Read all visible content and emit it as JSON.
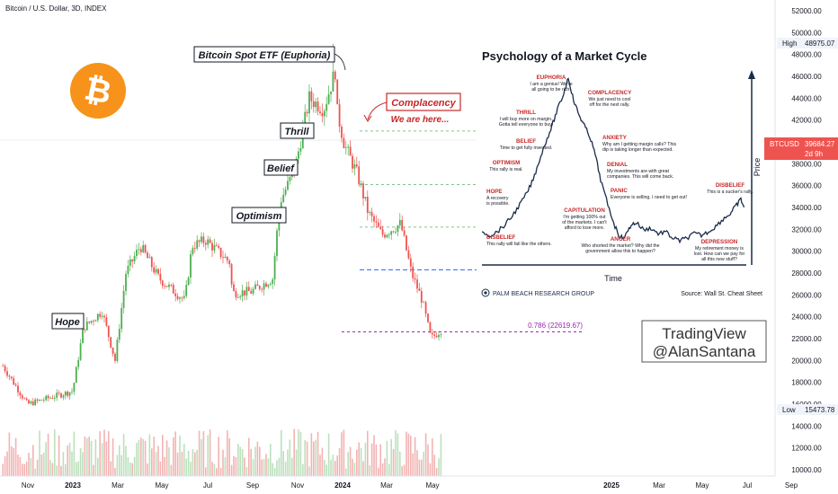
{
  "header": {
    "title": "Bitcoin / U.S. Dollar, 3D, INDEX"
  },
  "watermark": {
    "line1": "TradingView",
    "line2": "@AlanSantana"
  },
  "price_scale": {
    "labels": [
      "52000.00",
      "50000.00",
      "48000.00",
      "46000.00",
      "44000.00",
      "42000.00",
      "40000.00",
      "38000.00",
      "36000.00",
      "34000.00",
      "32000.00",
      "30000.00",
      "28000.00",
      "26000.00",
      "24000.00",
      "22000.00",
      "20000.00",
      "18000.00",
      "16000.00",
      "14000.00",
      "12000.00",
      "10000.00"
    ],
    "high_label": "High",
    "high_value": "48975.07",
    "low_label": "Low",
    "low_value": "15473.78",
    "symbol": "BTCUSD",
    "current_value": "39684.27",
    "countdown": "2d 9h"
  },
  "time_axis": [
    "Nov",
    "2023",
    "Mar",
    "May",
    "Jul",
    "Sep",
    "Nov",
    "2024",
    "Mar",
    "May",
    "2025",
    "Mar",
    "May",
    "Jul",
    "Sep"
  ],
  "annotations": {
    "etf": "Bitcoin Spot ETF (Euphoria)",
    "thrill": "Thrill",
    "belief": "Belief",
    "optimism": "Optimism",
    "hope": "Hope",
    "complacency": "Complacency",
    "here": "We are here...",
    "fib": "0.786 (22619.67)"
  },
  "inset": {
    "title": "Psychology of a Market Cycle",
    "x_label": "Time",
    "y_label": "Price",
    "publisher": "PALM BEACH RESEARCH GROUP",
    "source": "Source: Wall St. Cheat Sheet",
    "stages": [
      {
        "name": "EUPHORIA",
        "desc": [
          "I am a genius! We're",
          "all going to be rich!"
        ]
      },
      {
        "name": "COMPLACENCY",
        "desc": [
          "We just need to cool",
          "off for the next rally."
        ]
      },
      {
        "name": "THRILL",
        "desc": [
          "I will buy more on margin.",
          "Gotta tell everyone to buy!"
        ]
      },
      {
        "name": "ANXIETY",
        "desc": [
          "Why am I getting margin calls? This",
          "dip is taking longer than expected."
        ]
      },
      {
        "name": "BELIEF",
        "desc": [
          "Time to get fully invested."
        ]
      },
      {
        "name": "DENIAL",
        "desc": [
          "My investments are with great",
          "companies. This will come back."
        ]
      },
      {
        "name": "OPTIMISM",
        "desc": [
          "This rally is real."
        ]
      },
      {
        "name": "PANIC",
        "desc": [
          "Everyone is selling. I need to get out!"
        ]
      },
      {
        "name": "DISBELIEF",
        "desc": [
          "This is a sucker's rally."
        ]
      },
      {
        "name": "HOPE",
        "desc": [
          "A recovery",
          "is possible."
        ]
      },
      {
        "name": "CAPITULATION",
        "desc": [
          "I'm getting 100% out",
          "of the markets. I can't",
          "afford to lose more."
        ]
      },
      {
        "name": "DISBELIEF",
        "desc": [
          "This rally will fail like the others."
        ]
      },
      {
        "name": "ANGER",
        "desc": [
          "Who shorted the market? Why did the",
          "government allow this to happen?"
        ]
      },
      {
        "name": "DEPRESSION",
        "desc": [
          "My retirement money is",
          "lost. How can we pay for",
          "all this new stuff?"
        ]
      }
    ]
  },
  "colors": {
    "up": "#4caf50",
    "down": "#ef5350",
    "accent_red": "#c62828",
    "fib": "#9c27b0",
    "level_blue": "#2962ff",
    "level_green": "#4caf50",
    "bitcoin": "#f7931a"
  },
  "chart_data": {
    "type": "candlestick",
    "title": "Bitcoin / U.S. Dollar, 3D, INDEX",
    "ylim": [
      9000,
      53500
    ],
    "x_range": [
      "2022-10-01",
      "2025-10-01"
    ],
    "grid": false,
    "anchors": [
      [
        "2022-10-05",
        19500
      ],
      [
        "2022-11-08",
        16000
      ],
      [
        "2022-12-20",
        16800
      ],
      [
        "2023-01-10",
        17200
      ],
      [
        "2023-01-25",
        23000
      ],
      [
        "2023-02-20",
        24500
      ],
      [
        "2023-03-10",
        20000
      ],
      [
        "2023-03-25",
        28000
      ],
      [
        "2023-04-14",
        30500
      ],
      [
        "2023-05-10",
        27500
      ],
      [
        "2023-06-15",
        25500
      ],
      [
        "2023-06-25",
        30500
      ],
      [
        "2023-07-14",
        31000
      ],
      [
        "2023-08-16",
        29000
      ],
      [
        "2023-08-20",
        26200
      ],
      [
        "2023-09-15",
        26300
      ],
      [
        "2023-10-15",
        27500
      ],
      [
        "2023-10-25",
        34500
      ],
      [
        "2023-11-15",
        37500
      ],
      [
        "2023-12-05",
        44000
      ],
      [
        "2023-12-25",
        43000
      ],
      [
        "2024-01-10",
        46500
      ],
      [
        "2024-01-12",
        43000
      ],
      [
        "2024-01-23",
        39700
      ],
      [
        "2024-02-10",
        37000
      ],
      [
        "2024-02-25",
        33500
      ],
      [
        "2024-03-15",
        31500
      ],
      [
        "2024-04-10",
        32500
      ],
      [
        "2024-04-25",
        28000
      ],
      [
        "2024-05-10",
        25500
      ],
      [
        "2024-05-22",
        22000
      ],
      [
        "2024-06-05",
        22800
      ]
    ],
    "price_levels": [
      {
        "price": 41000,
        "color": "green"
      },
      {
        "price": 36100,
        "color": "green"
      },
      {
        "price": 32200,
        "color": "green"
      },
      {
        "price": 28300,
        "color": "blue"
      },
      {
        "price": 22619.67,
        "color": "purple",
        "label": "0.786 (22619.67)"
      }
    ],
    "high": 48975.07,
    "low": 15473.78,
    "last": 39684.27
  }
}
